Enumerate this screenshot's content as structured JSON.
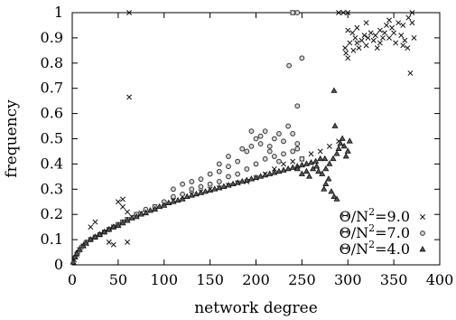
{
  "chart_data": {
    "type": "scatter",
    "xlabel": "network degree",
    "ylabel": "frequency",
    "xlim": [
      0,
      400
    ],
    "ylim": [
      0,
      1
    ],
    "xticks": [
      "0",
      "50",
      "100",
      "150",
      "200",
      "250",
      "300",
      "350",
      "400"
    ],
    "yticks": [
      "0",
      "0.1",
      "0.2",
      "0.3",
      "0.4",
      "0.5",
      "0.6",
      "0.7",
      "0.8",
      "0.9",
      "1"
    ],
    "grid": false,
    "legend_position": "bottom-right",
    "series": [
      {
        "name": "Θ/N²=9.0",
        "legend_parts": {
          "prefix": "Θ/N",
          "sup": "2",
          "suffix": "=9.0"
        },
        "marker": "cross",
        "points": [
          [
            2,
            0.02
          ],
          [
            5,
            0.04
          ],
          [
            8,
            0.06
          ],
          [
            12,
            0.075
          ],
          [
            15,
            0.085
          ],
          [
            20,
            0.1
          ],
          [
            25,
            0.11
          ],
          [
            30,
            0.12
          ],
          [
            35,
            0.13
          ],
          [
            40,
            0.14
          ],
          [
            45,
            0.15
          ],
          [
            50,
            0.16
          ],
          [
            55,
            0.17
          ],
          [
            60,
            0.18
          ],
          [
            65,
            0.19
          ],
          [
            70,
            0.2
          ],
          [
            75,
            0.205
          ],
          [
            80,
            0.21
          ],
          [
            90,
            0.23
          ],
          [
            100,
            0.245
          ],
          [
            110,
            0.255
          ],
          [
            120,
            0.27
          ],
          [
            130,
            0.28
          ],
          [
            140,
            0.29
          ],
          [
            150,
            0.3
          ],
          [
            160,
            0.305
          ],
          [
            170,
            0.315
          ],
          [
            180,
            0.325
          ],
          [
            190,
            0.33
          ],
          [
            200,
            0.345
          ],
          [
            210,
            0.36
          ],
          [
            220,
            0.38
          ],
          [
            230,
            0.4
          ],
          [
            240,
            0.41
          ],
          [
            250,
            0.42
          ],
          [
            260,
            0.44
          ],
          [
            270,
            0.45
          ],
          [
            280,
            0.47
          ],
          [
            290,
            0.49
          ],
          [
            20,
            0.15
          ],
          [
            25,
            0.17
          ],
          [
            40,
            0.09
          ],
          [
            45,
            0.08
          ],
          [
            50,
            0.25
          ],
          [
            55,
            0.26
          ],
          [
            55,
            0.23
          ],
          [
            60,
            0.09
          ],
          [
            60,
            0.21
          ],
          [
            62,
            0.665
          ],
          [
            62,
            1.0
          ],
          [
            240,
            1.0
          ],
          [
            290,
            1.0
          ],
          [
            295,
            1.0
          ],
          [
            300,
            1.0
          ],
          [
            370,
            1.0
          ],
          [
            297,
            0.86
          ],
          [
            298,
            0.84
          ],
          [
            300,
            0.82
          ],
          [
            302,
            0.88
          ],
          [
            305,
            0.92
          ],
          [
            306,
            0.85
          ],
          [
            308,
            0.9
          ],
          [
            310,
            0.88
          ],
          [
            312,
            0.86
          ],
          [
            315,
            0.89
          ],
          [
            318,
            0.91
          ],
          [
            320,
            0.87
          ],
          [
            322,
            0.9
          ],
          [
            325,
            0.92
          ],
          [
            328,
            0.89
          ],
          [
            330,
            0.91
          ],
          [
            332,
            0.86
          ],
          [
            335,
            0.93
          ],
          [
            338,
            0.9
          ],
          [
            340,
            0.92
          ],
          [
            342,
            0.95
          ],
          [
            345,
            0.9
          ],
          [
            348,
            0.94
          ],
          [
            350,
            0.92
          ],
          [
            352,
            0.88
          ],
          [
            355,
            0.96
          ],
          [
            358,
            0.91
          ],
          [
            360,
            0.95
          ],
          [
            362,
            0.89
          ],
          [
            365,
            0.86
          ],
          [
            366,
            0.98
          ],
          [
            368,
            0.76
          ],
          [
            370,
            0.96
          ],
          [
            372,
            0.9
          ],
          [
            300,
            0.93
          ],
          [
            310,
            0.94
          ],
          [
            320,
            0.96
          ],
          [
            335,
            0.88
          ],
          [
            345,
            0.97
          ],
          [
            360,
            0.87
          ]
        ]
      },
      {
        "name": "Θ/N²=7.0",
        "legend_parts": {
          "prefix": "Θ/N",
          "sup": "2",
          "suffix": "=7.0"
        },
        "marker": "circle",
        "points": [
          [
            3,
            0.03
          ],
          [
            6,
            0.05
          ],
          [
            10,
            0.07
          ],
          [
            15,
            0.09
          ],
          [
            20,
            0.1
          ],
          [
            25,
            0.11
          ],
          [
            30,
            0.12
          ],
          [
            35,
            0.13
          ],
          [
            40,
            0.14
          ],
          [
            45,
            0.15
          ],
          [
            50,
            0.16
          ],
          [
            55,
            0.17
          ],
          [
            60,
            0.18
          ],
          [
            70,
            0.2
          ],
          [
            80,
            0.22
          ],
          [
            90,
            0.23
          ],
          [
            100,
            0.25
          ],
          [
            110,
            0.27
          ],
          [
            120,
            0.28
          ],
          [
            130,
            0.3
          ],
          [
            140,
            0.31
          ],
          [
            150,
            0.32
          ],
          [
            160,
            0.33
          ],
          [
            170,
            0.35
          ],
          [
            180,
            0.36
          ],
          [
            190,
            0.38
          ],
          [
            200,
            0.4
          ],
          [
            210,
            0.42
          ],
          [
            220,
            0.43
          ],
          [
            230,
            0.44
          ],
          [
            240,
            0.45
          ],
          [
            245,
            0.48
          ],
          [
            250,
            0.42
          ],
          [
            110,
            0.3
          ],
          [
            120,
            0.32
          ],
          [
            130,
            0.33
          ],
          [
            140,
            0.34
          ],
          [
            150,
            0.36
          ],
          [
            160,
            0.37
          ],
          [
            170,
            0.39
          ],
          [
            180,
            0.41
          ],
          [
            185,
            0.46
          ],
          [
            190,
            0.45
          ],
          [
            195,
            0.47
          ],
          [
            200,
            0.5
          ],
          [
            205,
            0.48
          ],
          [
            210,
            0.53
          ],
          [
            215,
            0.47
          ],
          [
            220,
            0.5
          ],
          [
            225,
            0.52
          ],
          [
            230,
            0.49
          ],
          [
            235,
            0.55
          ],
          [
            240,
            0.52
          ],
          [
            160,
            0.4
          ],
          [
            170,
            0.43
          ],
          [
            195,
            0.53
          ],
          [
            205,
            0.51
          ],
          [
            215,
            0.45
          ],
          [
            225,
            0.41
          ],
          [
            245,
            0.46
          ],
          [
            240,
            1.0
          ],
          [
            245,
            1.0
          ],
          [
            236,
            0.79
          ],
          [
            245,
            0.63
          ],
          [
            250,
            0.82
          ]
        ]
      },
      {
        "name": "Θ/N²=4.0",
        "legend_parts": {
          "prefix": "Θ/N",
          "sup": "2",
          "suffix": "=4.0"
        },
        "marker": "triangle",
        "points": [
          [
            1,
            0.01
          ],
          [
            3,
            0.03
          ],
          [
            5,
            0.045
          ],
          [
            8,
            0.06
          ],
          [
            12,
            0.075
          ],
          [
            15,
            0.085
          ],
          [
            20,
            0.1
          ],
          [
            25,
            0.11
          ],
          [
            30,
            0.12
          ],
          [
            35,
            0.13
          ],
          [
            40,
            0.14
          ],
          [
            45,
            0.15
          ],
          [
            50,
            0.155
          ],
          [
            55,
            0.165
          ],
          [
            60,
            0.175
          ],
          [
            65,
            0.185
          ],
          [
            70,
            0.19
          ],
          [
            75,
            0.2
          ],
          [
            80,
            0.205
          ],
          [
            85,
            0.215
          ],
          [
            90,
            0.22
          ],
          [
            95,
            0.23
          ],
          [
            100,
            0.235
          ],
          [
            105,
            0.245
          ],
          [
            110,
            0.25
          ],
          [
            115,
            0.255
          ],
          [
            120,
            0.26
          ],
          [
            125,
            0.27
          ],
          [
            130,
            0.275
          ],
          [
            135,
            0.28
          ],
          [
            140,
            0.285
          ],
          [
            145,
            0.29
          ],
          [
            150,
            0.295
          ],
          [
            155,
            0.3
          ],
          [
            160,
            0.305
          ],
          [
            165,
            0.31
          ],
          [
            170,
            0.315
          ],
          [
            175,
            0.32
          ],
          [
            180,
            0.325
          ],
          [
            185,
            0.33
          ],
          [
            190,
            0.335
          ],
          [
            195,
            0.34
          ],
          [
            200,
            0.345
          ],
          [
            205,
            0.35
          ],
          [
            210,
            0.355
          ],
          [
            215,
            0.36
          ],
          [
            220,
            0.365
          ],
          [
            225,
            0.37
          ],
          [
            230,
            0.375
          ],
          [
            235,
            0.38
          ],
          [
            240,
            0.385
          ],
          [
            245,
            0.39
          ],
          [
            250,
            0.395
          ],
          [
            255,
            0.4
          ],
          [
            260,
            0.405
          ],
          [
            265,
            0.41
          ],
          [
            270,
            0.42
          ],
          [
            275,
            0.42
          ],
          [
            245,
            0.38
          ],
          [
            250,
            0.36
          ],
          [
            255,
            0.37
          ],
          [
            258,
            0.35
          ],
          [
            262,
            0.38
          ],
          [
            266,
            0.39
          ],
          [
            268,
            0.37
          ],
          [
            272,
            0.36
          ],
          [
            276,
            0.38
          ],
          [
            280,
            0.4
          ],
          [
            284,
            0.42
          ],
          [
            288,
            0.44
          ],
          [
            290,
            0.46
          ],
          [
            292,
            0.48
          ],
          [
            294,
            0.5
          ],
          [
            296,
            0.47
          ],
          [
            298,
            0.43
          ],
          [
            300,
            0.45
          ],
          [
            302,
            0.49
          ],
          [
            274,
            0.3
          ],
          [
            276,
            0.32
          ],
          [
            279,
            0.34
          ],
          [
            282,
            0.29
          ],
          [
            285,
            0.27
          ],
          [
            288,
            0.26
          ],
          [
            286,
            0.55
          ],
          [
            285,
            0.69
          ]
        ]
      }
    ]
  }
}
